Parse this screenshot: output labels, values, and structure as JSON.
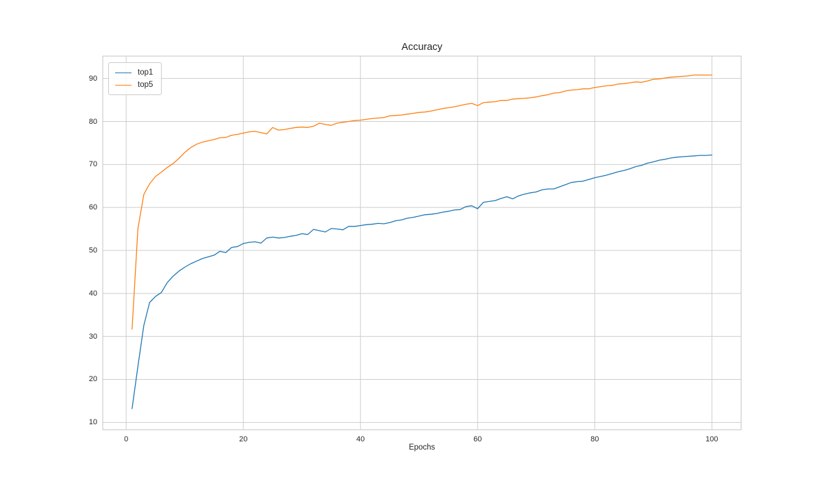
{
  "chart_data": {
    "type": "line",
    "title": "Accuracy",
    "xlabel": "Epochs",
    "ylabel": "",
    "grid": true,
    "legend_position": "upper left",
    "grid_color": "#cdcdcd",
    "spine_color": "#cdcdcd",
    "text_color": "#262626",
    "background_color": "#ffffff",
    "xlim": [
      -4,
      105
    ],
    "ylim": [
      8.3,
      95.2
    ],
    "xticks": [
      0,
      20,
      40,
      60,
      80,
      100
    ],
    "yticks": [
      10,
      20,
      30,
      40,
      50,
      60,
      70,
      80,
      90
    ],
    "x": [
      1,
      2,
      3,
      4,
      5,
      6,
      7,
      8,
      9,
      10,
      11,
      12,
      13,
      14,
      15,
      16,
      17,
      18,
      19,
      20,
      21,
      22,
      23,
      24,
      25,
      26,
      27,
      28,
      29,
      30,
      31,
      32,
      33,
      34,
      35,
      36,
      37,
      38,
      39,
      40,
      41,
      42,
      43,
      44,
      45,
      46,
      47,
      48,
      49,
      50,
      51,
      52,
      53,
      54,
      55,
      56,
      57,
      58,
      59,
      60,
      61,
      62,
      63,
      64,
      65,
      66,
      67,
      68,
      69,
      70,
      71,
      72,
      73,
      74,
      75,
      76,
      77,
      78,
      79,
      80,
      81,
      82,
      83,
      84,
      85,
      86,
      87,
      88,
      89,
      90,
      91,
      92,
      93,
      94,
      95,
      96,
      97,
      98,
      99,
      100
    ],
    "series": [
      {
        "name": "top1",
        "color": "#1f77b4",
        "values": [
          13.2,
          23.0,
          32.5,
          37.9,
          39.3,
          40.2,
          42.5,
          44.0,
          45.2,
          46.1,
          46.9,
          47.5,
          48.1,
          48.5,
          48.9,
          49.8,
          49.5,
          50.7,
          50.9,
          51.6,
          51.9,
          52.0,
          51.7,
          52.9,
          53.1,
          52.9,
          53.0,
          53.3,
          53.5,
          53.9,
          53.7,
          54.9,
          54.6,
          54.3,
          55.1,
          55.0,
          54.8,
          55.6,
          55.6,
          55.8,
          56.0,
          56.1,
          56.3,
          56.2,
          56.5,
          56.9,
          57.1,
          57.5,
          57.7,
          58.0,
          58.3,
          58.4,
          58.6,
          58.9,
          59.1,
          59.4,
          59.5,
          60.2,
          60.4,
          59.7,
          61.2,
          61.4,
          61.6,
          62.1,
          62.5,
          62.0,
          62.7,
          63.1,
          63.4,
          63.6,
          64.1,
          64.3,
          64.3,
          64.8,
          65.3,
          65.8,
          66.0,
          66.1,
          66.5,
          66.9,
          67.2,
          67.5,
          67.9,
          68.3,
          68.6,
          69.0,
          69.5,
          69.8,
          70.3,
          70.6,
          71.0,
          71.2,
          71.5,
          71.7,
          71.8,
          71.9,
          72.0,
          72.1,
          72.1,
          72.2
        ]
      },
      {
        "name": "top5",
        "color": "#ff7f0e",
        "values": [
          31.7,
          55.0,
          63.0,
          65.5,
          67.2,
          68.2,
          69.3,
          70.2,
          71.4,
          72.8,
          73.9,
          74.7,
          75.2,
          75.5,
          75.8,
          76.2,
          76.3,
          76.8,
          77.0,
          77.3,
          77.6,
          77.7,
          77.4,
          77.1,
          78.6,
          78.0,
          78.1,
          78.4,
          78.6,
          78.7,
          78.6,
          78.9,
          79.6,
          79.3,
          79.1,
          79.6,
          79.8,
          80.0,
          80.2,
          80.3,
          80.5,
          80.7,
          80.8,
          80.9,
          81.3,
          81.4,
          81.5,
          81.7,
          81.9,
          82.1,
          82.2,
          82.4,
          82.7,
          83.0,
          83.2,
          83.4,
          83.7,
          84.0,
          84.2,
          83.7,
          84.4,
          84.5,
          84.6,
          84.9,
          84.9,
          85.2,
          85.3,
          85.4,
          85.5,
          85.7,
          86.0,
          86.2,
          86.6,
          86.7,
          87.1,
          87.3,
          87.4,
          87.6,
          87.6,
          87.9,
          88.1,
          88.3,
          88.4,
          88.7,
          88.8,
          89.0,
          89.2,
          89.1,
          89.4,
          89.8,
          89.9,
          90.1,
          90.3,
          90.4,
          90.5,
          90.6,
          90.8,
          90.8,
          90.8,
          90.8
        ]
      }
    ]
  }
}
